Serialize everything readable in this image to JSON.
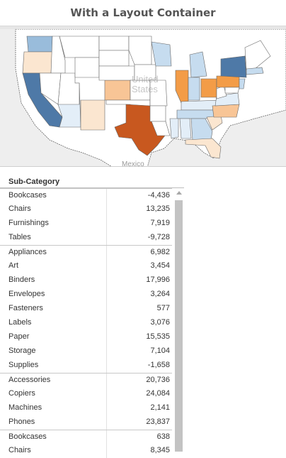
{
  "dashboard": {
    "title": "With a Layout Container"
  },
  "map": {
    "watermark_line1": "United",
    "watermark_line2": "States",
    "neighbor_label": "Mexico",
    "colors": {
      "water": "#eeeeee",
      "blue_dark": "#4e79a7",
      "blue_mid": "#99bcdb",
      "blue_light": "#c6dcef",
      "blue_pale": "#e3eef8",
      "neutral": "#ffffff",
      "orange_pale": "#fbe6d0",
      "orange_light": "#f8c596",
      "orange_mid": "#f39c47",
      "orange_dark": "#c8581f"
    }
  },
  "table": {
    "column_header": "Sub-Category",
    "groups": [
      {
        "rows": [
          {
            "label": "Bookcases",
            "value": "-4,436"
          },
          {
            "label": "Chairs",
            "value": "13,235"
          },
          {
            "label": "Furnishings",
            "value": "7,919"
          },
          {
            "label": "Tables",
            "value": "-9,728"
          }
        ]
      },
      {
        "rows": [
          {
            "label": "Appliances",
            "value": "6,982"
          },
          {
            "label": "Art",
            "value": "3,454"
          },
          {
            "label": "Binders",
            "value": "17,996"
          },
          {
            "label": "Envelopes",
            "value": "3,264"
          },
          {
            "label": "Fasteners",
            "value": "577"
          },
          {
            "label": "Labels",
            "value": "3,076"
          },
          {
            "label": "Paper",
            "value": "15,535"
          },
          {
            "label": "Storage",
            "value": "7,104"
          },
          {
            "label": "Supplies",
            "value": "-1,658"
          }
        ]
      },
      {
        "rows": [
          {
            "label": "Accessories",
            "value": "20,736"
          },
          {
            "label": "Copiers",
            "value": "24,084"
          },
          {
            "label": "Machines",
            "value": "2,141"
          },
          {
            "label": "Phones",
            "value": "23,837"
          }
        ]
      },
      {
        "rows": [
          {
            "label": "Bookcases",
            "value": "638"
          },
          {
            "label": "Chairs",
            "value": "8,345"
          }
        ]
      }
    ]
  }
}
